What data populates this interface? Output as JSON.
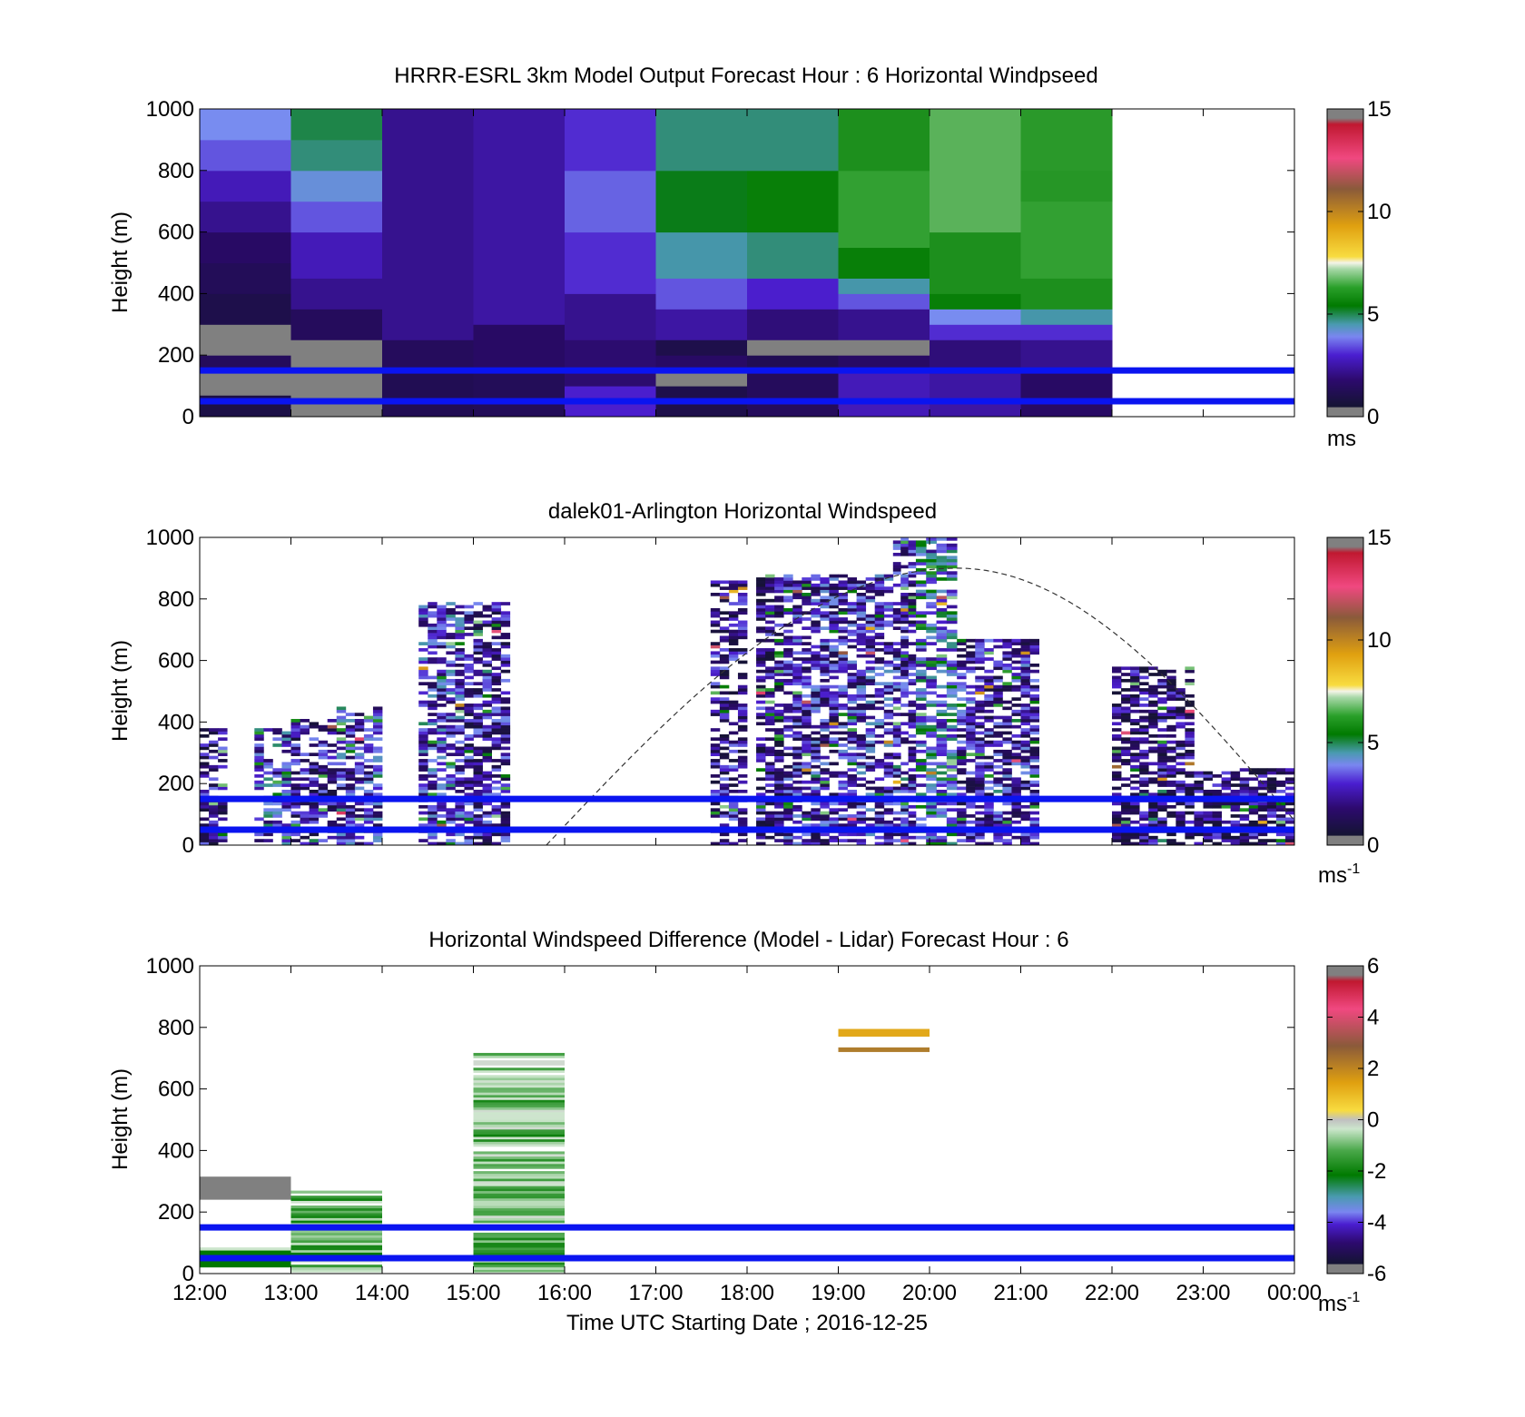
{
  "figure": {
    "xlabel": "Time UTC  Starting Date ; 2016-12-25",
    "x_tick_labels": [
      "12:00",
      "13:00",
      "14:00",
      "15:00",
      "16:00",
      "17:00",
      "18:00",
      "19:00",
      "20:00",
      "21:00",
      "22:00",
      "23:00",
      "00:00"
    ]
  },
  "chart_data": [
    {
      "type": "heatmap",
      "title": "HRRR-ESRL 3km Model Output   Forecast Hour : 6 Horizontal Windpseed",
      "ylabel": "Height (m)",
      "ylim": [
        0,
        1000
      ],
      "y_ticks": [
        0,
        200,
        400,
        600,
        800,
        1000
      ],
      "xlim_hours": [
        12,
        24
      ],
      "colorbar": {
        "ticks": [
          0,
          5,
          10,
          15
        ],
        "range": [
          0,
          15
        ],
        "unit": "ms"
      },
      "reference_lines_m": [
        150,
        50
      ],
      "hourly_columns": [
        {
          "start_hour": 12,
          "cells": [
            [
              0,
              70,
              0.5
            ],
            [
              70,
              150,
              -1
            ],
            [
              150,
              200,
              1.0
            ],
            [
              200,
              300,
              -1
            ],
            [
              300,
              400,
              0.6
            ],
            [
              400,
              500,
              0.9
            ],
            [
              500,
              600,
              1.2
            ],
            [
              600,
              700,
              1.6
            ],
            [
              700,
              800,
              2.0
            ],
            [
              800,
              900,
              2.6
            ],
            [
              900,
              1000,
              3.0
            ]
          ]
        },
        {
          "start_hour": 13,
          "cells": [
            [
              0,
              60,
              -1
            ],
            [
              60,
              250,
              -1
            ],
            [
              250,
              350,
              1.0
            ],
            [
              350,
              450,
              1.6
            ],
            [
              450,
              600,
              2.0
            ],
            [
              600,
              700,
              2.6
            ],
            [
              700,
              800,
              3.2
            ],
            [
              800,
              900,
              3.8
            ],
            [
              900,
              1000,
              4.0
            ]
          ]
        },
        {
          "start_hour": 14,
          "cells": [
            [
              0,
              150,
              0.8
            ],
            [
              150,
              250,
              1.0
            ],
            [
              250,
              1000,
              1.6
            ]
          ]
        },
        {
          "start_hour": 15,
          "cells": [
            [
              0,
              150,
              0.9
            ],
            [
              150,
              300,
              1.2
            ],
            [
              300,
              1000,
              1.8
            ]
          ]
        },
        {
          "start_hour": 16,
          "cells": [
            [
              0,
              100,
              2.2
            ],
            [
              100,
              250,
              1.3
            ],
            [
              250,
              400,
              1.6
            ],
            [
              400,
              600,
              2.3
            ],
            [
              600,
              800,
              2.7
            ],
            [
              800,
              1000,
              2.3
            ]
          ]
        },
        {
          "start_hour": 17,
          "cells": [
            [
              0,
              100,
              0.6
            ],
            [
              100,
              150,
              -1
            ],
            [
              150,
              200,
              1.2
            ],
            [
              200,
              250,
              0.6
            ],
            [
              250,
              350,
              1.8
            ],
            [
              350,
              450,
              2.6
            ],
            [
              450,
              600,
              3.6
            ],
            [
              600,
              800,
              4.2
            ],
            [
              800,
              1000,
              3.8
            ]
          ]
        },
        {
          "start_hour": 18,
          "cells": [
            [
              0,
              150,
              1.0
            ],
            [
              150,
              200,
              0.8
            ],
            [
              200,
              250,
              -1
            ],
            [
              250,
              350,
              1.4
            ],
            [
              350,
              450,
              2.2
            ],
            [
              450,
              600,
              3.8
            ],
            [
              600,
              800,
              4.5
            ],
            [
              800,
              1000,
              3.8
            ]
          ]
        },
        {
          "start_hour": 19,
          "cells": [
            [
              0,
              150,
              2.0
            ],
            [
              150,
              200,
              1.2
            ],
            [
              200,
              250,
              -1
            ],
            [
              250,
              350,
              1.6
            ],
            [
              350,
              400,
              2.6
            ],
            [
              400,
              450,
              3.6
            ],
            [
              450,
              550,
              4.5
            ],
            [
              550,
              800,
              5.5
            ],
            [
              800,
              1000,
              5.0
            ]
          ]
        },
        {
          "start_hour": 20,
          "cells": [
            [
              0,
              150,
              1.8
            ],
            [
              150,
              250,
              1.4
            ],
            [
              250,
              300,
              2.3
            ],
            [
              300,
              350,
              3.0
            ],
            [
              350,
              400,
              4.5
            ],
            [
              400,
              600,
              5.0
            ],
            [
              600,
              800,
              6.0
            ],
            [
              800,
              1000,
              6.0
            ]
          ]
        },
        {
          "start_hour": 21,
          "cells": [
            [
              0,
              150,
              1.2
            ],
            [
              150,
              250,
              1.6
            ],
            [
              250,
              300,
              2.3
            ],
            [
              300,
              350,
              3.6
            ],
            [
              350,
              450,
              5.0
            ],
            [
              450,
              700,
              5.5
            ],
            [
              700,
              800,
              5.2
            ],
            [
              800,
              1000,
              5.3
            ]
          ]
        }
      ]
    },
    {
      "type": "heatmap",
      "title": "dalek01-Arlington  Horizontal Windspeed",
      "ylabel": "Height (m)",
      "ylim": [
        0,
        1000
      ],
      "y_ticks": [
        0,
        200,
        400,
        600,
        800,
        1000
      ],
      "xlim_hours": [
        12,
        24
      ],
      "colorbar": {
        "ticks": [
          0,
          5,
          10,
          15
        ],
        "range": [
          0,
          15
        ],
        "unit": "ms",
        "unit_superscript": "-1"
      },
      "reference_lines_m": [
        150,
        50
      ],
      "boundary_curve": {
        "style": "dashed",
        "start_hour": 15.8,
        "peak_hour": 20.3,
        "peak_m": 900,
        "end_hour": 24.0,
        "end_m": 80
      },
      "profiles": [
        {
          "start_hour": 12.0,
          "end_hour": 12.3,
          "bottom_m": 0,
          "top_m": 380,
          "base": 1.5
        },
        {
          "start_hour": 12.6,
          "end_hour": 13.0,
          "bottom_m": 0,
          "top_m": 380,
          "base": 2.5
        },
        {
          "start_hour": 13.0,
          "end_hour": 13.5,
          "bottom_m": 0,
          "top_m": 410,
          "base": 1.5
        },
        {
          "start_hour": 13.5,
          "end_hour": 14.0,
          "bottom_m": 0,
          "top_m": 450,
          "base": 2.0
        },
        {
          "start_hour": 14.4,
          "end_hour": 14.9,
          "bottom_m": 0,
          "top_m": 790,
          "base": 2.3
        },
        {
          "start_hour": 14.9,
          "end_hour": 15.4,
          "bottom_m": 0,
          "top_m": 790,
          "base": 1.6
        },
        {
          "start_hour": 17.6,
          "end_hour": 18.0,
          "bottom_m": 0,
          "top_m": 860,
          "base": 1.5
        },
        {
          "start_hour": 18.1,
          "end_hour": 18.4,
          "bottom_m": 0,
          "top_m": 880,
          "base": 1.3
        },
        {
          "start_hour": 18.4,
          "end_hour": 19.0,
          "bottom_m": 0,
          "top_m": 880,
          "base": 1.8
        },
        {
          "start_hour": 19.0,
          "end_hour": 19.6,
          "bottom_m": 0,
          "top_m": 880,
          "base": 2.0
        },
        {
          "start_hour": 19.6,
          "end_hour": 19.85,
          "bottom_m": 0,
          "top_m": 1000,
          "base": 1.8
        },
        {
          "start_hour": 19.85,
          "end_hour": 20.3,
          "bottom_m": 0,
          "top_m": 1000,
          "base": 3.0
        },
        {
          "start_hour": 20.3,
          "end_hour": 21.2,
          "bottom_m": 0,
          "top_m": 670,
          "base": 1.8
        },
        {
          "start_hour": 22.0,
          "end_hour": 22.9,
          "bottom_m": 0,
          "top_m": 580,
          "base": 1.2
        },
        {
          "start_hour": 22.9,
          "end_hour": 24.0,
          "bottom_m": 0,
          "top_m": 250,
          "base": 1.2
        }
      ]
    },
    {
      "type": "heatmap",
      "title": "Horizontal Windspeed Difference (Model - Lidar) Forecast Hour : 6",
      "ylabel": "Height (m)",
      "ylim": [
        0,
        1000
      ],
      "y_ticks": [
        0,
        200,
        400,
        600,
        800,
        1000
      ],
      "xlim_hours": [
        12,
        24
      ],
      "colorbar": {
        "ticks": [
          -6,
          -4,
          -2,
          0,
          2,
          4,
          6
        ],
        "range": [
          -6,
          6
        ],
        "unit": "ms",
        "unit_superscript": "-1"
      },
      "reference_lines_m": [
        150,
        50
      ],
      "blocks": [
        {
          "start_hour": 12,
          "end_hour": 13,
          "bottom_m": 240,
          "top_m": 315,
          "value": 6.0
        },
        {
          "start_hour": 12,
          "end_hour": 13,
          "bottom_m": 75,
          "top_m": 85,
          "value": -0.5
        },
        {
          "start_hour": 12,
          "end_hour": 13,
          "bottom_m": 20,
          "top_m": 75,
          "value": -2.5
        },
        {
          "start_hour": 13,
          "end_hour": 14,
          "bottom_m": 5,
          "top_m": 270,
          "value": -1.5
        },
        {
          "start_hour": 15,
          "end_hour": 16,
          "bottom_m": 5,
          "top_m": 720,
          "value": -1.2
        },
        {
          "start_hour": 19,
          "end_hour": 20,
          "bottom_m": 770,
          "top_m": 795,
          "value": 1.8
        },
        {
          "start_hour": 19,
          "end_hour": 20,
          "bottom_m": 720,
          "top_m": 735,
          "value": 3.0
        }
      ]
    }
  ]
}
